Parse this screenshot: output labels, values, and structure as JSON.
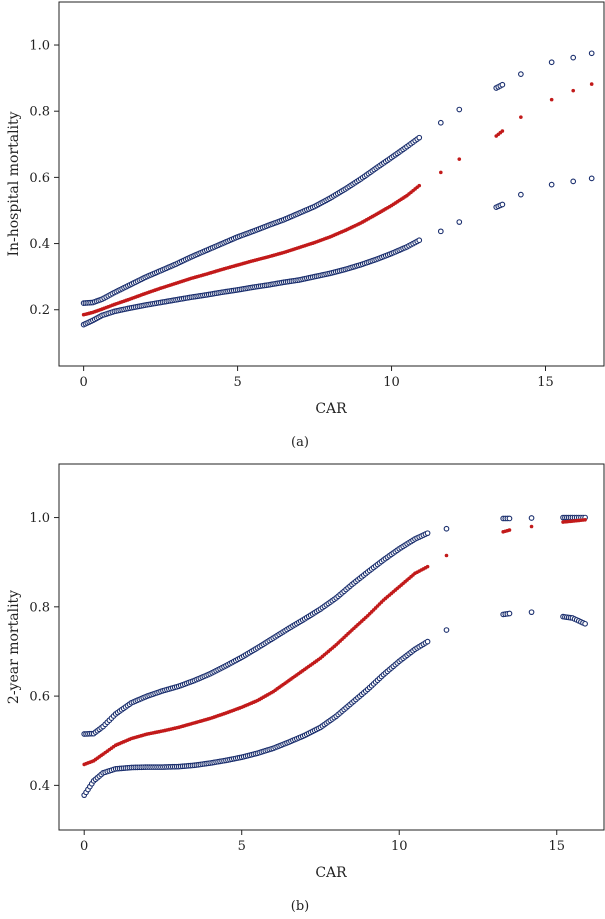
{
  "colors": {
    "band": "#1b2f6e",
    "fit": "#c21a1a",
    "axis": "#222222"
  },
  "chart_data": [
    {
      "type": "scatter",
      "panel_label": "(a)",
      "title": "",
      "xlabel": "CAR",
      "ylabel": "In-hospital mortality",
      "xlim": [
        -0.8,
        16.9
      ],
      "ylim": [
        0.03,
        1.13
      ],
      "xticks": [
        0,
        5,
        10,
        15
      ],
      "yticks": [
        0.2,
        0.4,
        0.6,
        0.8,
        1.0
      ],
      "xtick_labels": [
        "0",
        "5",
        "10",
        "15"
      ],
      "ytick_labels": [
        "0.2",
        "0.4",
        "0.6",
        "0.8",
        "1.0"
      ],
      "grid": false,
      "legend": "none",
      "series": [
        {
          "role": "upper",
          "points": [
            [
              0,
              0.22
            ],
            [
              0.3,
              0.222
            ],
            [
              0.6,
              0.232
            ],
            [
              1,
              0.252
            ],
            [
              1.5,
              0.275
            ],
            [
              2,
              0.298
            ],
            [
              2.5,
              0.318
            ],
            [
              3,
              0.338
            ],
            [
              3.5,
              0.36
            ],
            [
              4,
              0.38
            ],
            [
              4.5,
              0.4
            ],
            [
              5,
              0.42
            ],
            [
              5.5,
              0.437
            ],
            [
              6,
              0.455
            ],
            [
              6.5,
              0.472
            ],
            [
              7,
              0.492
            ],
            [
              7.5,
              0.512
            ],
            [
              8,
              0.537
            ],
            [
              8.5,
              0.565
            ],
            [
              9,
              0.595
            ],
            [
              9.5,
              0.628
            ],
            [
              10,
              0.66
            ],
            [
              10.5,
              0.693
            ],
            [
              10.9,
              0.72
            ],
            [
              11.6,
              0.765
            ],
            [
              12.2,
              0.805
            ],
            [
              13.4,
              0.87
            ],
            [
              13.6,
              0.88
            ],
            [
              14.2,
              0.912
            ],
            [
              15.2,
              0.948
            ],
            [
              15.9,
              0.962
            ],
            [
              16.5,
              0.975
            ]
          ]
        },
        {
          "role": "fit",
          "points": [
            [
              0,
              0.185
            ],
            [
              0.3,
              0.192
            ],
            [
              0.6,
              0.202
            ],
            [
              1,
              0.216
            ],
            [
              1.5,
              0.232
            ],
            [
              2,
              0.249
            ],
            [
              2.5,
              0.265
            ],
            [
              3,
              0.28
            ],
            [
              3.5,
              0.295
            ],
            [
              4,
              0.308
            ],
            [
              4.5,
              0.322
            ],
            [
              5,
              0.335
            ],
            [
              5.5,
              0.348
            ],
            [
              6,
              0.36
            ],
            [
              6.5,
              0.373
            ],
            [
              7,
              0.388
            ],
            [
              7.5,
              0.403
            ],
            [
              8,
              0.42
            ],
            [
              8.5,
              0.44
            ],
            [
              9,
              0.462
            ],
            [
              9.5,
              0.488
            ],
            [
              10,
              0.515
            ],
            [
              10.5,
              0.545
            ],
            [
              10.9,
              0.575
            ],
            [
              11.6,
              0.615
            ],
            [
              12.2,
              0.655
            ],
            [
              13.4,
              0.725
            ],
            [
              13.6,
              0.74
            ],
            [
              14.2,
              0.782
            ],
            [
              15.2,
              0.835
            ],
            [
              15.9,
              0.862
            ],
            [
              16.5,
              0.882
            ]
          ]
        },
        {
          "role": "lower",
          "points": [
            [
              0,
              0.155
            ],
            [
              0.3,
              0.168
            ],
            [
              0.6,
              0.183
            ],
            [
              1,
              0.195
            ],
            [
              1.5,
              0.205
            ],
            [
              2,
              0.214
            ],
            [
              2.5,
              0.222
            ],
            [
              3,
              0.23
            ],
            [
              3.5,
              0.238
            ],
            [
              4,
              0.245
            ],
            [
              4.5,
              0.253
            ],
            [
              5,
              0.26
            ],
            [
              5.5,
              0.268
            ],
            [
              6,
              0.275
            ],
            [
              6.5,
              0.283
            ],
            [
              7,
              0.29
            ],
            [
              7.5,
              0.3
            ],
            [
              8,
              0.31
            ],
            [
              8.5,
              0.322
            ],
            [
              9,
              0.336
            ],
            [
              9.5,
              0.352
            ],
            [
              10,
              0.37
            ],
            [
              10.5,
              0.39
            ],
            [
              10.9,
              0.41
            ],
            [
              11.6,
              0.437
            ],
            [
              12.2,
              0.465
            ],
            [
              13.4,
              0.51
            ],
            [
              13.6,
              0.518
            ],
            [
              14.2,
              0.548
            ],
            [
              15.2,
              0.578
            ],
            [
              15.9,
              0.588
            ],
            [
              16.5,
              0.597
            ]
          ]
        }
      ]
    },
    {
      "type": "scatter",
      "panel_label": "(b)",
      "title": "",
      "xlabel": "CAR",
      "ylabel": "2-year mortality",
      "xlim": [
        -0.8,
        16.5
      ],
      "ylim": [
        0.3,
        1.12
      ],
      "xticks": [
        0,
        5,
        10,
        15
      ],
      "yticks": [
        0.4,
        0.6,
        0.8,
        1.0
      ],
      "xtick_labels": [
        "0",
        "5",
        "10",
        "15"
      ],
      "ytick_labels": [
        "0.4",
        "0.6",
        "0.8",
        "1.0"
      ],
      "grid": false,
      "legend": "none",
      "series": [
        {
          "role": "upper",
          "points": [
            [
              0,
              0.515
            ],
            [
              0.3,
              0.516
            ],
            [
              0.6,
              0.532
            ],
            [
              1,
              0.56
            ],
            [
              1.5,
              0.585
            ],
            [
              2,
              0.6
            ],
            [
              2.5,
              0.612
            ],
            [
              3,
              0.622
            ],
            [
              3.5,
              0.635
            ],
            [
              4,
              0.65
            ],
            [
              4.5,
              0.668
            ],
            [
              5,
              0.687
            ],
            [
              5.5,
              0.708
            ],
            [
              6,
              0.73
            ],
            [
              6.5,
              0.752
            ],
            [
              7,
              0.773
            ],
            [
              7.5,
              0.795
            ],
            [
              8,
              0.82
            ],
            [
              8.5,
              0.85
            ],
            [
              9,
              0.878
            ],
            [
              9.5,
              0.905
            ],
            [
              10,
              0.93
            ],
            [
              10.5,
              0.952
            ],
            [
              10.9,
              0.965
            ],
            [
              11.5,
              0.975
            ],
            [
              13.3,
              0.998
            ],
            [
              13.5,
              0.998
            ],
            [
              14.2,
              0.999
            ],
            [
              15.2,
              1.0
            ],
            [
              15.5,
              1.0
            ],
            [
              15.9,
              1.0
            ]
          ]
        },
        {
          "role": "fit",
          "points": [
            [
              0,
              0.447
            ],
            [
              0.3,
              0.455
            ],
            [
              0.6,
              0.47
            ],
            [
              1,
              0.49
            ],
            [
              1.5,
              0.505
            ],
            [
              2,
              0.515
            ],
            [
              2.5,
              0.522
            ],
            [
              3,
              0.53
            ],
            [
              3.5,
              0.54
            ],
            [
              4,
              0.55
            ],
            [
              4.5,
              0.562
            ],
            [
              5,
              0.575
            ],
            [
              5.5,
              0.59
            ],
            [
              6,
              0.61
            ],
            [
              6.5,
              0.635
            ],
            [
              7,
              0.66
            ],
            [
              7.5,
              0.685
            ],
            [
              8,
              0.715
            ],
            [
              8.5,
              0.748
            ],
            [
              9,
              0.78
            ],
            [
              9.5,
              0.815
            ],
            [
              10,
              0.845
            ],
            [
              10.5,
              0.875
            ],
            [
              10.9,
              0.89
            ],
            [
              11.5,
              0.915
            ],
            [
              13.3,
              0.968
            ],
            [
              13.5,
              0.972
            ],
            [
              14.2,
              0.98
            ],
            [
              15.2,
              0.99
            ],
            [
              15.5,
              0.992
            ],
            [
              15.9,
              0.995
            ]
          ]
        },
        {
          "role": "lower",
          "points": [
            [
              0,
              0.378
            ],
            [
              0.3,
              0.41
            ],
            [
              0.6,
              0.428
            ],
            [
              1,
              0.437
            ],
            [
              1.5,
              0.44
            ],
            [
              2,
              0.441
            ],
            [
              2.5,
              0.441
            ],
            [
              3,
              0.442
            ],
            [
              3.5,
              0.445
            ],
            [
              4,
              0.45
            ],
            [
              4.5,
              0.456
            ],
            [
              5,
              0.463
            ],
            [
              5.5,
              0.472
            ],
            [
              6,
              0.483
            ],
            [
              6.5,
              0.497
            ],
            [
              7,
              0.512
            ],
            [
              7.5,
              0.53
            ],
            [
              8,
              0.555
            ],
            [
              8.5,
              0.585
            ],
            [
              9,
              0.615
            ],
            [
              9.5,
              0.648
            ],
            [
              10,
              0.678
            ],
            [
              10.5,
              0.705
            ],
            [
              10.9,
              0.722
            ],
            [
              11.5,
              0.748
            ],
            [
              13.3,
              0.783
            ],
            [
              13.5,
              0.785
            ],
            [
              14.2,
              0.788
            ],
            [
              15.2,
              0.778
            ],
            [
              15.5,
              0.775
            ],
            [
              15.9,
              0.762
            ]
          ]
        }
      ]
    }
  ]
}
